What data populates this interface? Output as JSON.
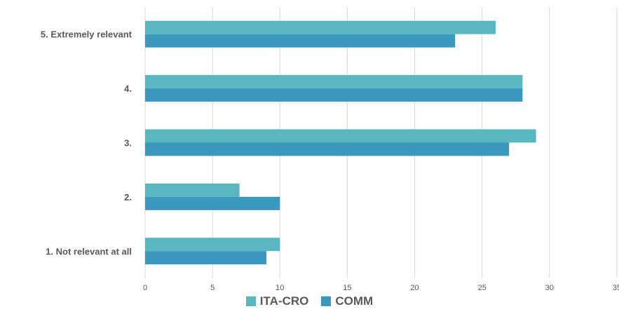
{
  "chart_data": {
    "type": "bar",
    "orientation": "horizontal",
    "categories": [
      "1. Not relevant at all",
      "2.",
      "3.",
      "4.",
      "5. Extremely relevant"
    ],
    "series": [
      {
        "name": "ITA-CRO",
        "color": "#58B7C1",
        "values": [
          10,
          7,
          29,
          28,
          26
        ]
      },
      {
        "name": "COMM",
        "color": "#3A97BE",
        "values": [
          9,
          10,
          27,
          28,
          23
        ]
      }
    ],
    "xlim": [
      0,
      35
    ],
    "xticks": [
      0,
      5,
      10,
      15,
      20,
      25,
      30,
      35
    ],
    "grid": true,
    "legend_position": "bottom"
  }
}
